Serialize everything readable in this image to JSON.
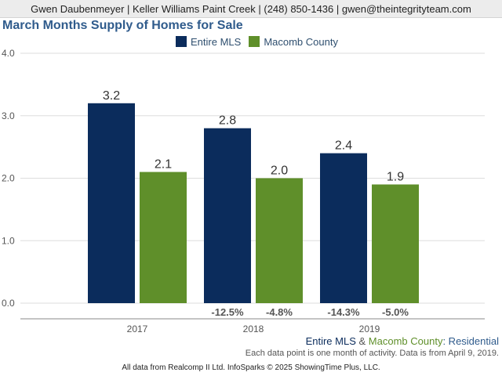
{
  "header": {
    "contact": "Gwen Daubenmeyer | Keller Williams Paint Creek | (248) 850-1436 | gwen@theintegrityteam.com"
  },
  "footer": {
    "series_line_a": "Entire MLS",
    "series_line_amp": " & ",
    "series_line_b": "Macomb County",
    "series_line_suffix": ": Residential",
    "note": "Each data point is one month of activity. Data is from April 9, 2019.",
    "source": "All data from Realcomp II Ltd. InfoSparks © 2025 ShowingTime Plus, LLC."
  },
  "colors": {
    "entire_mls": "#0b2c5c",
    "macomb": "#5f8f2a",
    "grid": "#dddddd",
    "axis_text": "#555555",
    "change_text": "#555555"
  },
  "chart_data": {
    "type": "bar",
    "title": "March Months Supply of Homes for Sale",
    "xlabel": "",
    "ylabel": "",
    "categories": [
      "2017",
      "2018",
      "2019"
    ],
    "ylim": [
      0,
      4
    ],
    "yticks": [
      "0.0",
      "1.0",
      "2.0",
      "3.0",
      "4.0"
    ],
    "grid": true,
    "legend_position": "top",
    "series": [
      {
        "name": "Entire MLS",
        "values": [
          3.2,
          2.8,
          2.4
        ],
        "labels": [
          "3.2",
          "2.8",
          "2.4"
        ],
        "changes": [
          "",
          "-12.5%",
          "-14.3%"
        ]
      },
      {
        "name": "Macomb County",
        "values": [
          2.1,
          2.0,
          1.9
        ],
        "labels": [
          "2.1",
          "2.0",
          "1.9"
        ],
        "changes": [
          "",
          "-4.8%",
          "-5.0%"
        ]
      }
    ]
  }
}
